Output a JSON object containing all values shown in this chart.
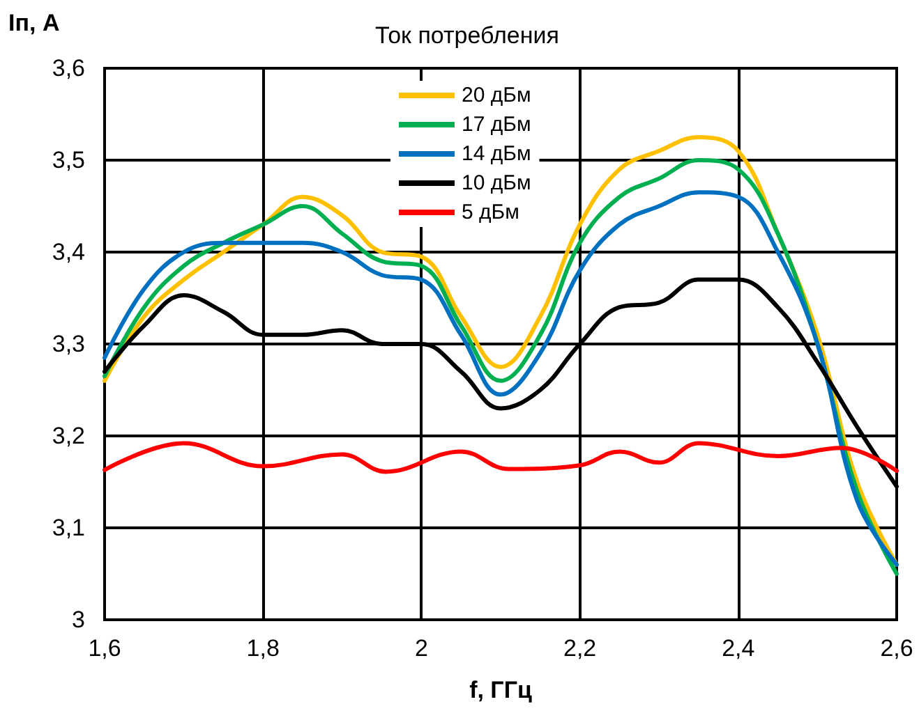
{
  "chart_data": {
    "type": "line",
    "title": "Ток потребления",
    "xlabel": "f, ГГц",
    "ylabel": "Iп, A",
    "x": [
      1.6,
      1.65,
      1.7,
      1.75,
      1.8,
      1.85,
      1.9,
      1.95,
      2.0,
      2.05,
      2.1,
      2.15,
      2.2,
      2.25,
      2.3,
      2.35,
      2.4,
      2.45,
      2.5,
      2.55,
      2.6
    ],
    "series": [
      {
        "name": "20 дБм",
        "color": "#ffc000",
        "values": [
          3.26,
          3.33,
          3.37,
          3.4,
          3.43,
          3.46,
          3.44,
          3.4,
          3.395,
          3.33,
          3.275,
          3.33,
          3.43,
          3.49,
          3.51,
          3.525,
          3.51,
          3.42,
          3.31,
          3.15,
          3.06
        ]
      },
      {
        "name": "17 дБм",
        "color": "#00b050",
        "values": [
          3.265,
          3.34,
          3.385,
          3.41,
          3.43,
          3.45,
          3.42,
          3.39,
          3.385,
          3.32,
          3.26,
          3.31,
          3.41,
          3.46,
          3.48,
          3.5,
          3.49,
          3.42,
          3.3,
          3.14,
          3.05
        ]
      },
      {
        "name": "14 дБм",
        "color": "#0070c0",
        "values": [
          3.285,
          3.36,
          3.4,
          3.41,
          3.41,
          3.41,
          3.4,
          3.375,
          3.37,
          3.31,
          3.245,
          3.29,
          3.38,
          3.43,
          3.45,
          3.465,
          3.46,
          3.4,
          3.3,
          3.13,
          3.06
        ]
      },
      {
        "name": "10 дБм",
        "color": "#000000",
        "values": [
          3.27,
          3.32,
          3.353,
          3.335,
          3.31,
          3.31,
          3.315,
          3.3,
          3.3,
          3.27,
          3.23,
          3.25,
          3.3,
          3.34,
          3.345,
          3.37,
          3.37,
          3.34,
          3.28,
          3.21,
          3.145
        ]
      },
      {
        "name": "5 дБм",
        "color": "#ff0000",
        "x": [
          1.6,
          1.7,
          1.8,
          1.9,
          1.955,
          2.05,
          2.11,
          2.2,
          2.25,
          2.3,
          2.35,
          2.45,
          2.53,
          2.6
        ],
        "values": [
          3.163,
          3.192,
          3.167,
          3.18,
          3.161,
          3.183,
          3.164,
          3.168,
          3.183,
          3.171,
          3.192,
          3.178,
          3.187,
          3.162
        ]
      }
    ],
    "xlim": [
      1.6,
      2.6
    ],
    "xticks": [
      {
        "value": 1.6,
        "label": "1,6"
      },
      {
        "value": 1.8,
        "label": "1,8"
      },
      {
        "value": 2.0,
        "label": "2"
      },
      {
        "value": 2.2,
        "label": "2,2"
      },
      {
        "value": 2.4,
        "label": "2,4"
      },
      {
        "value": 2.6,
        "label": "2,6"
      }
    ],
    "ylim": [
      3.0,
      3.6
    ],
    "yticks": [
      {
        "value": 3.0,
        "label": "3"
      },
      {
        "value": 3.1,
        "label": "3,1"
      },
      {
        "value": 3.2,
        "label": "3,2"
      },
      {
        "value": 3.3,
        "label": "3,3"
      },
      {
        "value": 3.4,
        "label": "3,4"
      },
      {
        "value": 3.5,
        "label": "3,5"
      },
      {
        "value": 3.6,
        "label": "3,6"
      }
    ],
    "grid": true,
    "legend": "top",
    "marker": "none",
    "line_style": "solid"
  }
}
